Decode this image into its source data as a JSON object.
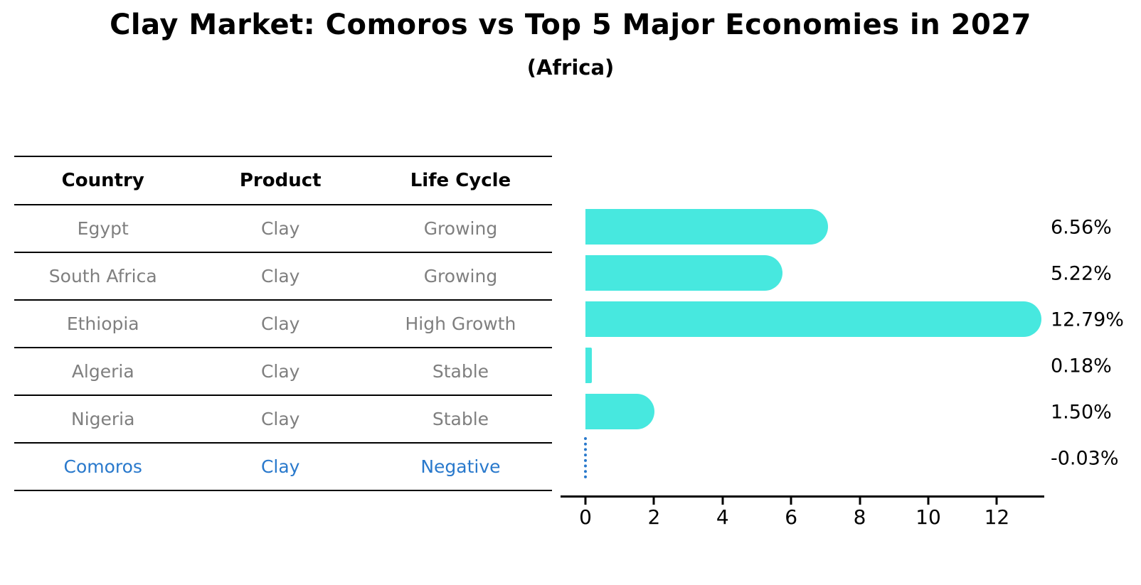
{
  "title": "Clay Market: Comoros vs Top 5 Major Economies in 2027",
  "subtitle": "(Africa)",
  "table": {
    "headers": [
      "Country",
      "Product",
      "Life Cycle"
    ],
    "rows": [
      {
        "country": "Egypt",
        "product": "Clay",
        "life_cycle": "Growing",
        "highlight": false
      },
      {
        "country": "South Africa",
        "product": "Clay",
        "life_cycle": "Growing",
        "highlight": false
      },
      {
        "country": "Ethiopia",
        "product": "Clay",
        "life_cycle": "High Growth",
        "highlight": false
      },
      {
        "country": "Algeria",
        "product": "Clay",
        "life_cycle": "Stable",
        "highlight": false
      },
      {
        "country": "Nigeria",
        "product": "Clay",
        "life_cycle": "Stable",
        "highlight": false
      },
      {
        "country": "Comoros",
        "product": "Clay",
        "life_cycle": "Negative",
        "highlight": true
      }
    ]
  },
  "chart_data": {
    "type": "bar",
    "orientation": "horizontal",
    "title": "Clay Market: Comoros vs Top 5 Major Economies in 2027",
    "subtitle": "(Africa)",
    "categories": [
      "Egypt",
      "South Africa",
      "Ethiopia",
      "Algeria",
      "Nigeria",
      "Comoros"
    ],
    "values": [
      6.56,
      5.22,
      12.79,
      0.18,
      1.5,
      -0.03
    ],
    "value_labels": [
      "6.56%",
      "5.22%",
      "12.79%",
      "0.18%",
      "1.50%",
      "-0.03%"
    ],
    "xlabel": "",
    "ylabel": "",
    "x_ticks": [
      0,
      2,
      4,
      6,
      8,
      10,
      12
    ],
    "xlim": [
      -0.73,
      13.6
    ],
    "grid": false,
    "legend": "none",
    "bar_color": "#47e8df",
    "highlight_color": "#2979cc",
    "negative_style": "dotted-line"
  },
  "colors": {
    "background": "#ffffff",
    "bar": "#47e8df",
    "highlight_blue": "#2979cc",
    "table_text": "#7f7f7f",
    "axis": "#000000"
  }
}
